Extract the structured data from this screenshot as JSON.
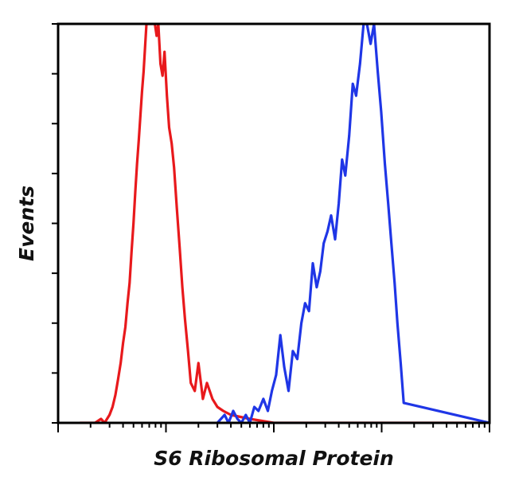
{
  "chart_data": {
    "type": "line",
    "title": "",
    "xlabel": "S6 Ribosomal Protein",
    "ylabel": "Events",
    "x_scale": "log",
    "xlim": [
      1,
      10000
    ],
    "ylim": [
      0,
      100
    ],
    "grid": false,
    "legend": "none",
    "x_tick_labels": [],
    "y_tick_labels": [],
    "series": [
      {
        "color": "#e8191c",
        "x": [
          1.6,
          2.2,
          2.5,
          2.7,
          3.0,
          3.2,
          3.4,
          3.6,
          3.8,
          4.0,
          4.2,
          4.4,
          4.6,
          4.8,
          5.0,
          5.2,
          5.4,
          5.6,
          5.8,
          6.0,
          6.2,
          6.4,
          6.6,
          6.8,
          7.0,
          7.3,
          7.6,
          7.9,
          8.2,
          8.5,
          8.9,
          9.3,
          9.7,
          10.2,
          10.7,
          11.3,
          11.9,
          12.6,
          13.4,
          14.2,
          15.0,
          16.0,
          17.0,
          18.5,
          20.0,
          22.0,
          24.0,
          27.0,
          30.0,
          34.0,
          40.0,
          60.0,
          100.0,
          500.0,
          10000.0
        ],
        "y": [
          0,
          0,
          1,
          0,
          2,
          4,
          7,
          11,
          15,
          20,
          24,
          30,
          35,
          43,
          50,
          58,
          65,
          71,
          77,
          83,
          88,
          94,
          100,
          100,
          100,
          100,
          100,
          100,
          97,
          100,
          90,
          87,
          93,
          82,
          74,
          70,
          64,
          54,
          44,
          34,
          26,
          18,
          10,
          8,
          15,
          6,
          10,
          6,
          4,
          3,
          2,
          1,
          0,
          0,
          0
        ]
      },
      {
        "color": "#1f36e6",
        "x": [
          30.0,
          35.0,
          38.0,
          42.0,
          46.0,
          50.0,
          55.0,
          60.0,
          66.0,
          72.0,
          80.0,
          88.0,
          96.0,
          105.0,
          115.0,
          125.0,
          137.0,
          150.0,
          165.0,
          180.0,
          195.0,
          212.0,
          230.0,
          250.0,
          270.0,
          290.0,
          315.0,
          340.0,
          370.0,
          400.0,
          430.0,
          460.0,
          500.0,
          540.0,
          580.0,
          630.0,
          680.0,
          730.0,
          790.0,
          850.0,
          920.0,
          990.0,
          1070.0,
          1150.0,
          1230.0,
          1320.0,
          1400.0,
          1500.0,
          1600.0,
          10000.0
        ],
        "y": [
          0,
          2,
          0,
          3,
          1,
          0,
          2,
          0,
          4,
          3,
          6,
          3,
          8,
          12,
          22,
          14,
          8,
          18,
          16,
          25,
          30,
          28,
          40,
          34,
          38,
          45,
          48,
          52,
          46,
          55,
          66,
          62,
          72,
          85,
          82,
          90,
          100,
          100,
          95,
          100,
          88,
          78,
          65,
          55,
          45,
          35,
          25,
          15,
          5,
          0
        ]
      }
    ]
  }
}
